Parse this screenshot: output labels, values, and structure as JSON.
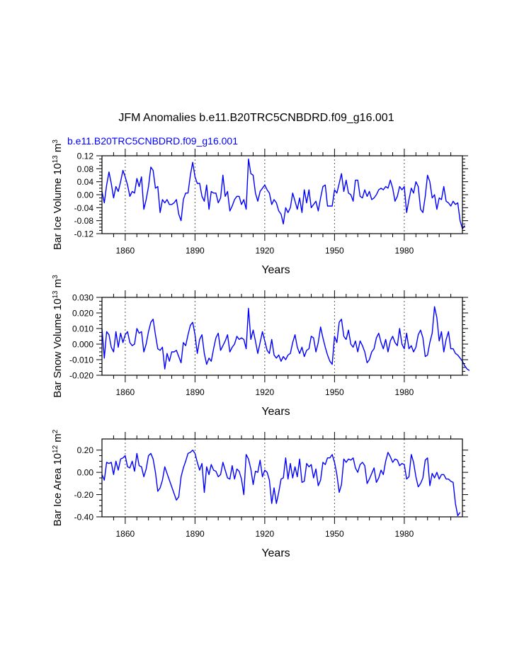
{
  "title": "JFM Anomalies b.e11.B20TRC5CNBDRD.f09_g16.001",
  "series_label": "b.e11.B20TRC5CNBDRD.f09_g16.001",
  "line_color": "#0000ff",
  "chart_data": [
    {
      "type": "line",
      "name": "bar-ice-volume",
      "ylabel": "Bar Ice Volume 10",
      "ylabel_exp": "13",
      "ylabel_unit": " m",
      "ylabel_unit_exp": "3",
      "xlabel": "Years",
      "xlim": [
        1850,
        2005
      ],
      "ylim": [
        -0.12,
        0.12
      ],
      "yticks": [
        -0.12,
        -0.08,
        -0.04,
        0.0,
        0.04,
        0.08,
        0.12
      ],
      "ytick_labels": [
        "-0.12",
        "-0.08",
        "-0.04",
        "0.00",
        "0.04",
        "0.08",
        "0.12"
      ],
      "xticks": [
        1860,
        1890,
        1920,
        1950,
        1980
      ],
      "xtick_labels": [
        "1860",
        "1890",
        "1920",
        "1950",
        "1980"
      ],
      "x_start": 1850,
      "values": [
        0.01,
        -0.025,
        0.03,
        0.07,
        0.035,
        -0.01,
        0.025,
        0.01,
        0.04,
        0.075,
        0.055,
        0.03,
        -0.005,
        0.01,
        0.005,
        0.05,
        0.025,
        0.055,
        -0.045,
        -0.015,
        0.025,
        0.085,
        0.075,
        0.02,
        0.025,
        -0.055,
        -0.015,
        -0.025,
        -0.015,
        -0.03,
        -0.03,
        -0.025,
        -0.015,
        -0.06,
        -0.08,
        -0.015,
        0.005,
        0.005,
        0.06,
        0.1,
        0.055,
        0.035,
        0.035,
        -0.005,
        -0.02,
        0.03,
        -0.045,
        0.01,
        0.005,
        0.005,
        -0.025,
        -0.01,
        0.06,
        -0.005,
        0.01,
        -0.05,
        -0.035,
        -0.015,
        -0.005,
        -0.005,
        -0.03,
        -0.015,
        -0.045,
        0.11,
        0.065,
        0.06,
        0.005,
        -0.02,
        0.01,
        0.02,
        0.03,
        0.015,
        0.005,
        -0.03,
        -0.015,
        -0.025,
        -0.05,
        -0.06,
        -0.09,
        -0.04,
        -0.055,
        -0.04,
        0.005,
        -0.02,
        -0.045,
        -0.01,
        -0.055,
        0.015,
        -0.025,
        0.015,
        -0.04,
        -0.03,
        -0.02,
        -0.05,
        -0.01,
        0.025,
        0.03,
        -0.035,
        -0.035,
        -0.035,
        0.015,
        0.005,
        0.035,
        0.065,
        0.01,
        0.045,
        0.005,
        0.0,
        -0.02,
        0.045,
        0.045,
        -0.005,
        -0.01,
        0.015,
        -0.005,
        0.01,
        -0.015,
        -0.01,
        0.0,
        0.015,
        0.02,
        0.015,
        0.025,
        0.02,
        0.045,
        0.02,
        -0.02,
        -0.005,
        0.025,
        0.015,
        0.025,
        -0.055,
        -0.015,
        0.02,
        0.005,
        0.04,
        0.025,
        -0.045,
        -0.055,
        -0.005,
        0.06,
        0.04,
        -0.01,
        0.0,
        -0.045,
        -0.01,
        -0.015,
        0.025,
        -0.02,
        -0.025,
        -0.035,
        -0.02,
        -0.03,
        -0.025,
        -0.08,
        -0.105,
        -0.095
      ]
    },
    {
      "type": "line",
      "name": "bar-snow-volume",
      "ylabel": "Bar Snow Volume 10",
      "ylabel_exp": "13",
      "ylabel_unit": " m",
      "ylabel_unit_exp": "3",
      "xlabel": "Years",
      "xlim": [
        1850,
        2005
      ],
      "ylim": [
        -0.02,
        0.03
      ],
      "yticks": [
        -0.02,
        -0.01,
        0.0,
        0.01,
        0.02,
        0.03
      ],
      "ytick_labels": [
        "-0.020",
        "-0.010",
        "0.000",
        "0.010",
        "0.020",
        "0.030"
      ],
      "xticks": [
        1860,
        1890,
        1920,
        1950,
        1980
      ],
      "xtick_labels": [
        "1860",
        "1890",
        "1920",
        "1950",
        "1980"
      ],
      "x_start": 1850,
      "values": [
        0.01,
        -0.009,
        0.008,
        0.006,
        -0.002,
        -0.005,
        0.008,
        -0.002,
        0.007,
        0.001,
        0.006,
        0.008,
        0.001,
        -0.001,
        0.0,
        0.01,
        0.007,
        0.008,
        -0.005,
        0.0,
        0.008,
        0.014,
        0.016,
        0.006,
        -0.003,
        -0.004,
        -0.002,
        -0.016,
        -0.006,
        -0.011,
        -0.005,
        -0.005,
        -0.004,
        -0.008,
        -0.012,
        0.001,
        -0.001,
        0.006,
        0.012,
        0.014,
        0.006,
        -0.006,
        0.003,
        0.006,
        -0.006,
        -0.013,
        -0.009,
        -0.011,
        -0.003,
        0.004,
        0.007,
        -0.004,
        -0.001,
        0.002,
        0.006,
        -0.005,
        -0.002,
        0.0,
        0.005,
        0.003,
        0.004,
        0.003,
        -0.003,
        0.023,
        0.003,
        0.009,
        0.002,
        -0.006,
        0.001,
        0.008,
        0.002,
        -0.004,
        -0.006,
        0.003,
        -0.007,
        -0.009,
        -0.007,
        -0.011,
        -0.008,
        -0.01,
        -0.007,
        -0.006,
        0.001,
        0.006,
        -0.002,
        -0.006,
        -0.002,
        -0.008,
        -0.004,
        -0.003,
        0.005,
        0.004,
        -0.005,
        0.001,
        0.011,
        0.004,
        -0.002,
        -0.007,
        -0.011,
        -0.013,
        0.005,
        0.001,
        0.014,
        0.016,
        0.005,
        0.003,
        0.009,
        0.0,
        -0.002,
        0.002,
        -0.005,
        0.002,
        -0.001,
        -0.005,
        -0.012,
        -0.01,
        -0.005,
        -0.003,
        0.004,
        0.007,
        0.001,
        -0.003,
        0.003,
        -0.005,
        0.002,
        0.005,
        0.001,
        -0.001,
        0.01,
        0.0,
        -0.003,
        0.007,
        -0.003,
        -0.001,
        -0.005,
        -0.002,
        0.006,
        0.009,
        0.004,
        -0.008,
        -0.007,
        0.001,
        0.007,
        0.024,
        0.017,
        0.002,
        0.008,
        -0.005,
        0.003,
        0.008,
        -0.003,
        -0.003,
        -0.006,
        -0.007,
        -0.009,
        -0.011,
        -0.014,
        -0.016,
        -0.017
      ]
    },
    {
      "type": "line",
      "name": "bar-ice-area",
      "ylabel": "Bar Ice Area 10",
      "ylabel_exp": "12",
      "ylabel_unit": " m",
      "ylabel_unit_exp": "2",
      "xlabel": "Years",
      "xlim": [
        1850,
        2005
      ],
      "ylim": [
        -0.4,
        0.3
      ],
      "yticks": [
        -0.4,
        -0.2,
        0.0,
        0.2
      ],
      "ytick_labels": [
        "-0.40",
        "-0.20",
        "0.00",
        "0.20"
      ],
      "xticks": [
        1860,
        1890,
        1920,
        1950,
        1980
      ],
      "xtick_labels": [
        "1860",
        "1890",
        "1920",
        "1950",
        "1980"
      ],
      "x_start": 1850,
      "values": [
        -0.02,
        -0.07,
        0.09,
        0.08,
        0.09,
        -0.02,
        0.1,
        0.02,
        0.12,
        0.13,
        0.15,
        0.05,
        0.04,
        0.1,
        0.01,
        0.17,
        0.06,
        0.05,
        -0.04,
        0.03,
        0.15,
        0.17,
        0.12,
        0.0,
        -0.17,
        -0.14,
        -0.07,
        0.05,
        -0.01,
        -0.07,
        -0.13,
        -0.19,
        -0.25,
        -0.22,
        -0.04,
        0.04,
        0.1,
        0.17,
        0.18,
        0.2,
        0.17,
        0.09,
        0.02,
        0.08,
        -0.18,
        0.05,
        -0.02,
        0.07,
        0.02,
        0.01,
        -0.04,
        -0.02,
        0.09,
        0.02,
        -0.05,
        -0.06,
        0.06,
        -0.06,
        0.03,
        0.01,
        -0.06,
        -0.2,
        0.16,
        0.12,
        0.03,
        -0.11,
        0.01,
        0.0,
        0.11,
        -0.04,
        0.02,
        0.0,
        -0.07,
        -0.28,
        -0.14,
        -0.28,
        -0.18,
        -0.06,
        -0.05,
        0.13,
        -0.06,
        0.08,
        -0.05,
        0.05,
        -0.04,
        0.12,
        -0.09,
        -0.08,
        0.08,
        0.05,
        0.07,
        -0.05,
        0.03,
        -0.12,
        -0.07,
        0.09,
        0.07,
        0.13,
        0.13,
        0.16,
        0.09,
        -0.02,
        -0.18,
        -0.11,
        0.12,
        0.09,
        0.12,
        0.11,
        0.13,
        0.04,
        0.0,
        0.07,
        0.09,
        0.06,
        -0.1,
        -0.06,
        -0.01,
        0.04,
        -0.09,
        -0.05,
        0.02,
        -0.02,
        0.1,
        0.18,
        0.14,
        0.09,
        0.12,
        0.11,
        0.06,
        0.08,
        0.07,
        -0.06,
        -0.04,
        0.16,
        0.09,
        -0.04,
        -0.13,
        -0.1,
        -0.05,
        0.11,
        0.13,
        -0.12,
        -0.01,
        -0.05,
        0.0,
        -0.06,
        -0.02,
        -0.02,
        -0.06,
        -0.06,
        -0.08,
        -0.09,
        -0.28,
        -0.39,
        -0.36
      ]
    }
  ]
}
